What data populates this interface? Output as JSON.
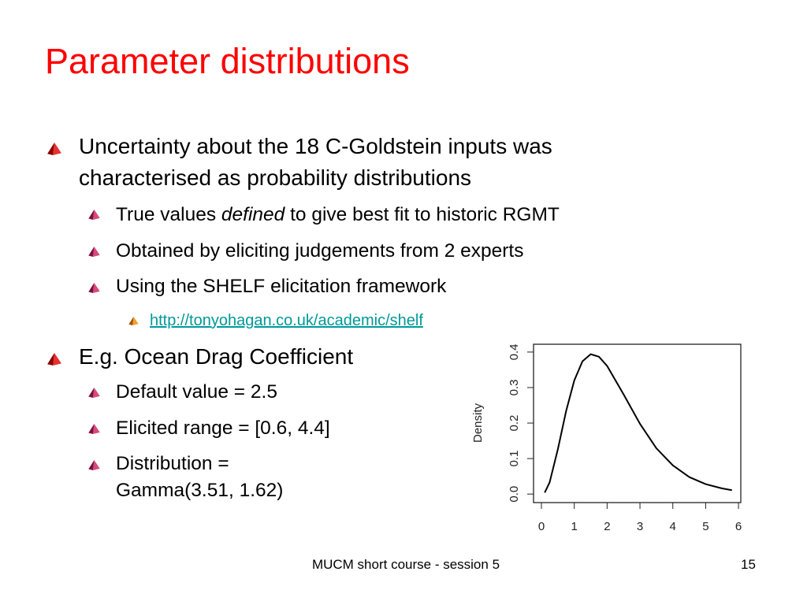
{
  "title": "Parameter distributions",
  "bullets": [
    {
      "text": "Uncertainty about the 18 C-Goldstein inputs was characterised as probability distributions",
      "children": [
        {
          "text_before": "True values",
          "emphasis": "defined",
          "text_after": "to give best fit to historic RGMT"
        },
        {
          "text": "Obtained by eliciting judgements from 2 experts"
        },
        {
          "text": "Using the SHELF elicitation framework",
          "children": [
            {
              "link": "http://tonyohagan.co.uk/academic/shelf"
            }
          ]
        }
      ]
    },
    {
      "text": "E.g. Ocean Drag Coefficient",
      "children": [
        {
          "text": "Default value = 2.5"
        },
        {
          "text": "Elicited range = [0.6, 4.4]"
        },
        {
          "text": "Distribution = Gamma(3.51, 1.62)"
        }
      ]
    }
  ],
  "chart_data": {
    "type": "line",
    "y_label": "Density",
    "x": [
      0.1,
      0.25,
      0.5,
      0.75,
      1,
      1.25,
      1.5,
      1.75,
      2,
      2.5,
      3,
      3.5,
      4,
      4.5,
      5,
      5.5,
      5.8
    ],
    "series": [
      {
        "color": "#000000",
        "values": [
          0.004,
          0.033,
          0.126,
          0.233,
          0.32,
          0.374,
          0.394,
          0.387,
          0.361,
          0.281,
          0.198,
          0.129,
          0.081,
          0.048,
          0.028,
          0.016,
          0.011
        ]
      }
    ],
    "xlim": [
      -0.24,
      6.07
    ],
    "ylim": [
      -0.024,
      0.422
    ],
    "xticks": [
      0,
      1,
      2,
      3,
      4,
      5,
      6
    ],
    "yticks": [
      {
        "value": 0,
        "label": "0.0"
      },
      0.1,
      0.2,
      0.3,
      0.4
    ]
  },
  "footer": {
    "text": "MUCM short course - session 5",
    "page_number": 15
  }
}
